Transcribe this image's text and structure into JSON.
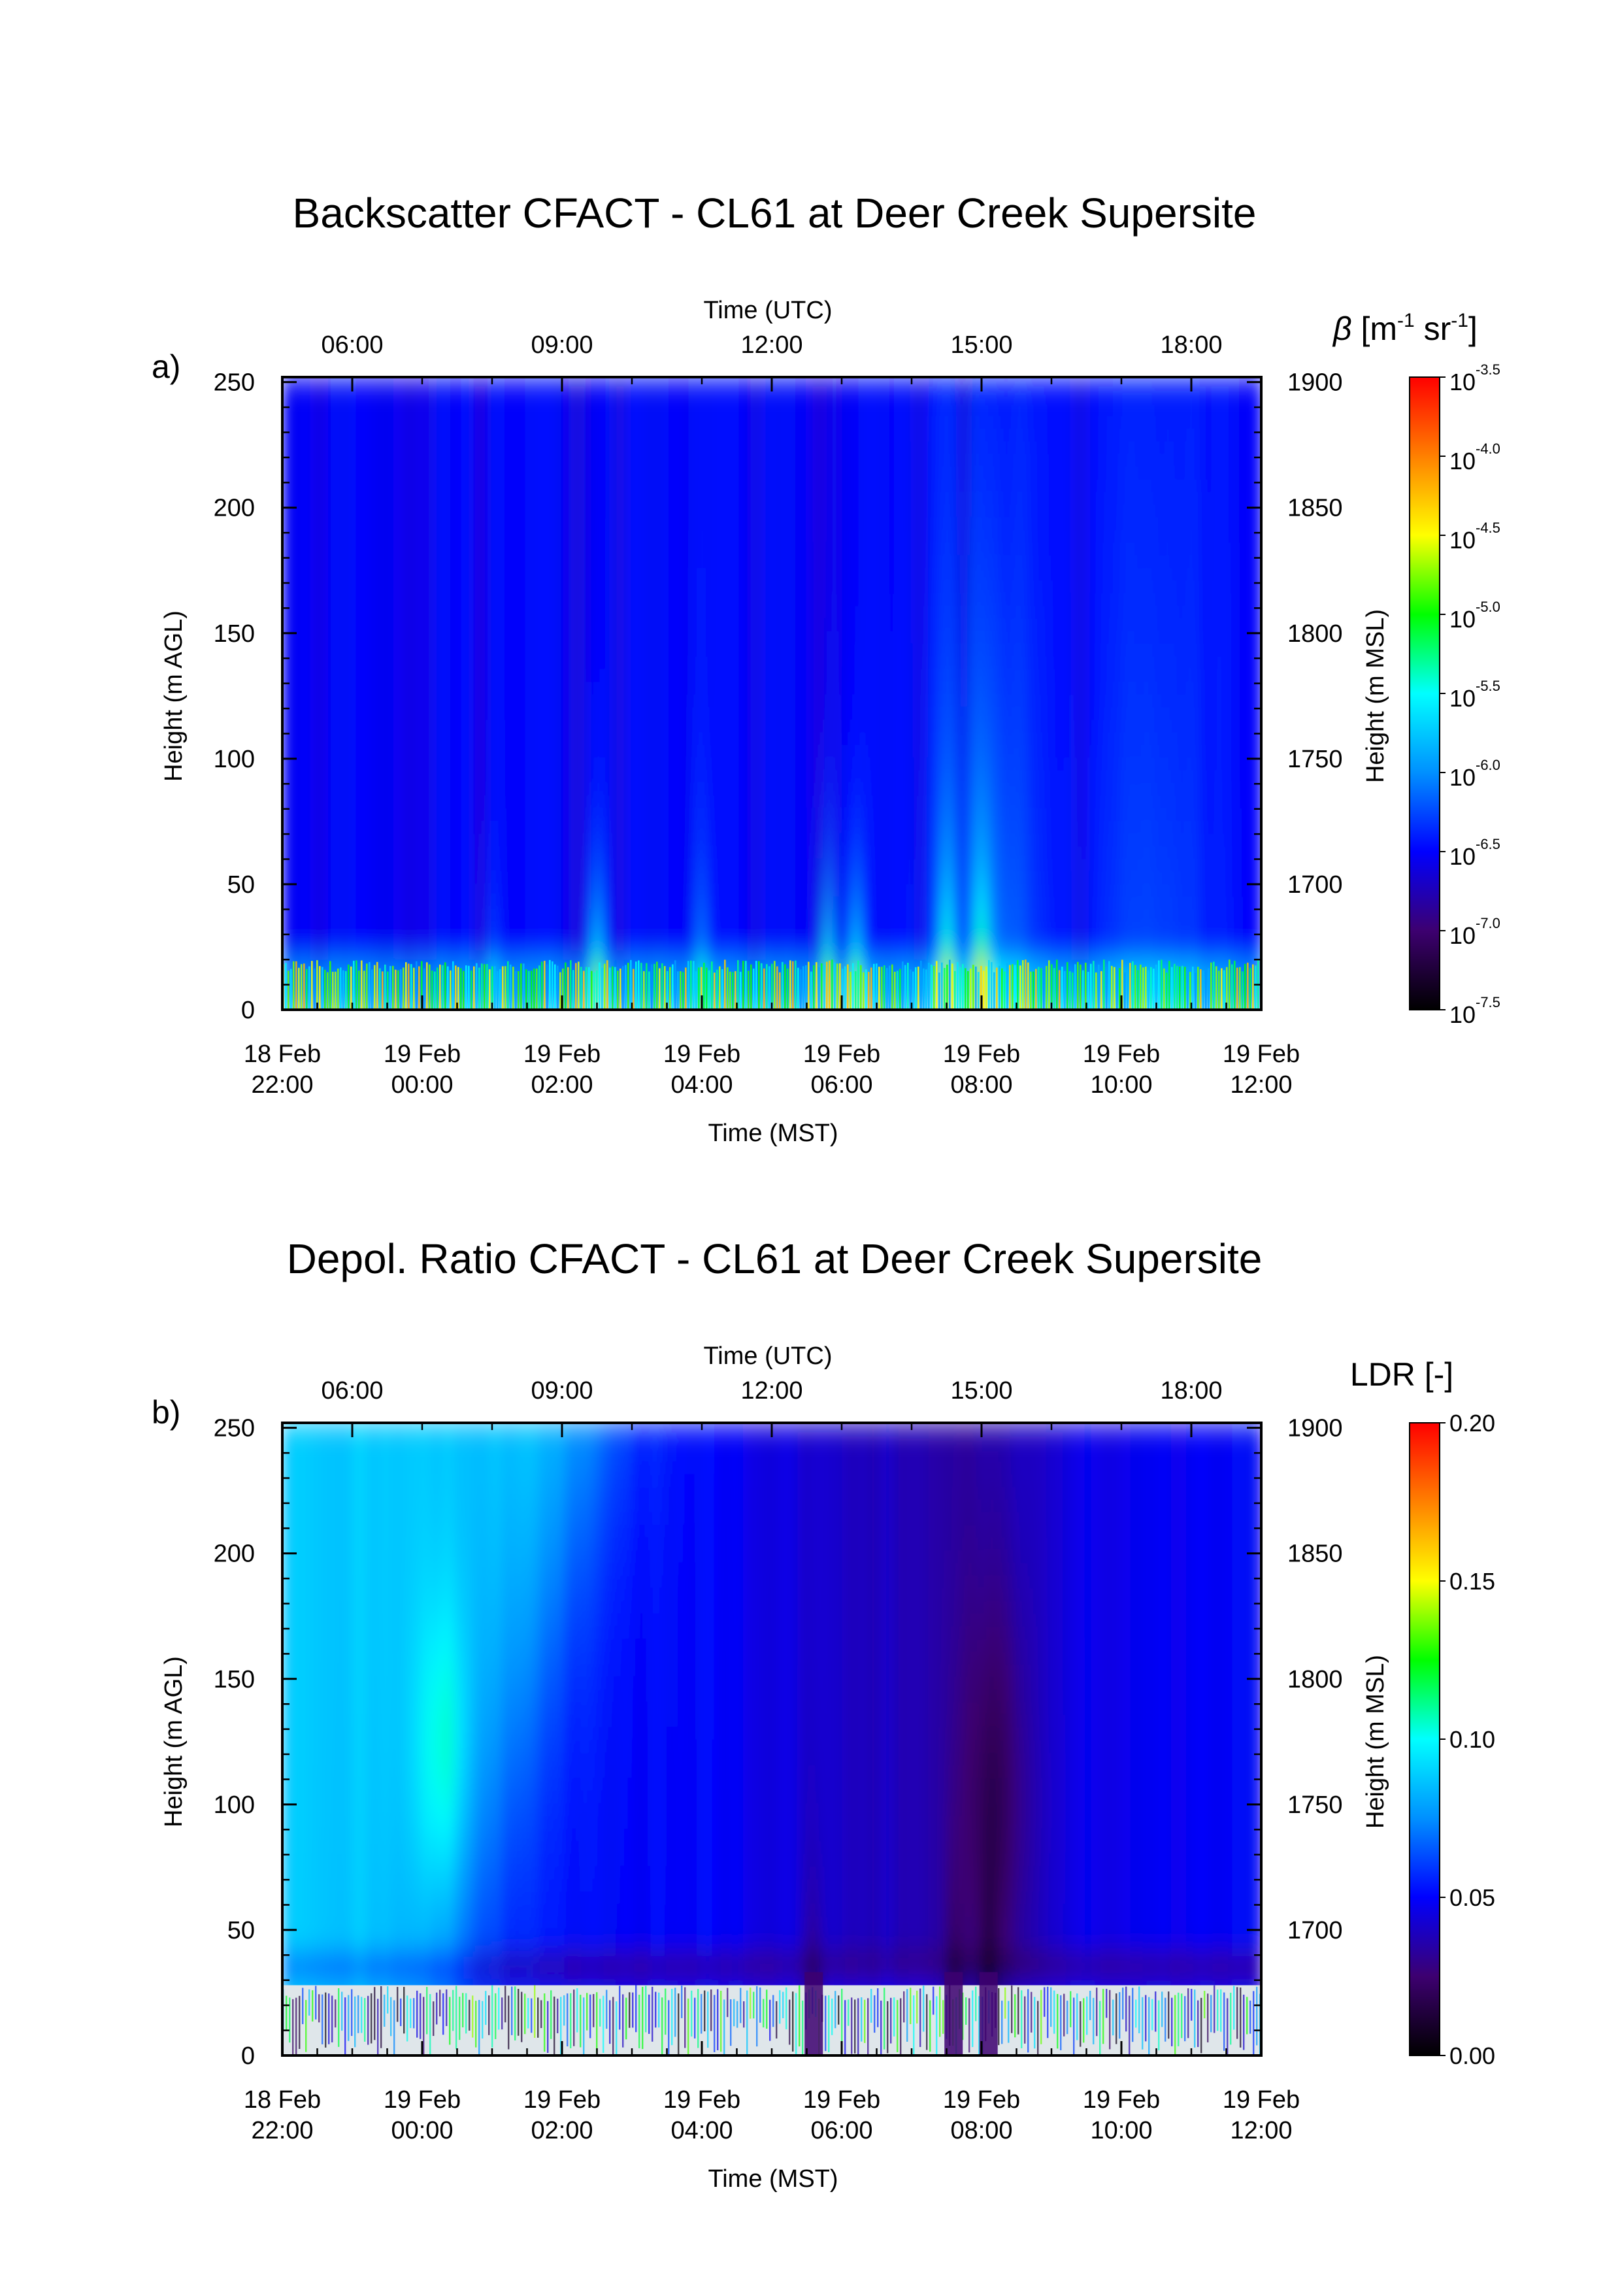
{
  "chart_data": [
    {
      "panel": "a)",
      "title": "Backscatter CFACT - CL61 at Deer Creek Supersite",
      "type": "heatmap",
      "top_axis": {
        "label": "Time (UTC)",
        "ticks": [
          "06:00",
          "09:00",
          "12:00",
          "15:00",
          "18:00"
        ]
      },
      "bottom_axis": {
        "label": "Time (MST)",
        "ticks": [
          [
            "18 Feb",
            "22:00"
          ],
          [
            "19 Feb",
            "00:00"
          ],
          [
            "19 Feb",
            "02:00"
          ],
          [
            "19 Feb",
            "04:00"
          ],
          [
            "19 Feb",
            "06:00"
          ],
          [
            "19 Feb",
            "08:00"
          ],
          [
            "19 Feb",
            "10:00"
          ],
          [
            "19 Feb",
            "12:00"
          ]
        ]
      },
      "xlim_mst_hours": [
        -2,
        12
      ],
      "left_axis": {
        "label": "Height (m AGL)",
        "ticks": [
          0,
          50,
          100,
          150,
          200,
          250
        ],
        "range": [
          0,
          252
        ]
      },
      "right_axis": {
        "label": "Height (m MSL)",
        "ticks": [
          1700,
          1750,
          1800,
          1850,
          1900
        ]
      },
      "colorbar": {
        "label": "β [m-1 sr-1]",
        "ticks": [
          "-3.5",
          "-4.0",
          "-4.5",
          "-5.0",
          "-5.5",
          "-6.0",
          "-6.5",
          "-7.0",
          "-7.5"
        ],
        "tick_base": "10",
        "range_log10": [
          -7.5,
          -3.5
        ],
        "colormap": "rainbow"
      },
      "field_description": {
        "background_log10": -6.5,
        "near_surface_layer_top_m": 20,
        "strong_plumes_mst_hours": [
          2.5,
          5.8,
          6.2,
          7.5,
          8.0
        ],
        "elevated_aerosol_mst_hours": [
          7.5,
          9.5
        ]
      }
    },
    {
      "panel": "b)",
      "title": "Depol. Ratio CFACT - CL61 at Deer Creek Supersite",
      "type": "heatmap",
      "top_axis": {
        "label": "Time (UTC)",
        "ticks": [
          "06:00",
          "09:00",
          "12:00",
          "15:00",
          "18:00"
        ]
      },
      "bottom_axis": {
        "label": "Time (MST)",
        "ticks": [
          [
            "18 Feb",
            "22:00"
          ],
          [
            "19 Feb",
            "00:00"
          ],
          [
            "19 Feb",
            "02:00"
          ],
          [
            "19 Feb",
            "04:00"
          ],
          [
            "19 Feb",
            "06:00"
          ],
          [
            "19 Feb",
            "08:00"
          ],
          [
            "19 Feb",
            "10:00"
          ],
          [
            "19 Feb",
            "12:00"
          ]
        ]
      },
      "xlim_mst_hours": [
        -2,
        12
      ],
      "left_axis": {
        "label": "Height (m AGL)",
        "ticks": [
          0,
          50,
          100,
          150,
          200,
          250
        ],
        "range": [
          0,
          252
        ]
      },
      "right_axis": {
        "label": "Height (m MSL)",
        "ticks": [
          1700,
          1750,
          1800,
          1850,
          1900
        ]
      },
      "colorbar": {
        "label": "LDR [-]",
        "ticks": [
          "0.20",
          "0.15",
          "0.10",
          "0.05",
          "0.00"
        ],
        "range": [
          0.0,
          0.2
        ],
        "colormap": "rainbow"
      },
      "field_description": {
        "early_high_ldr_mst_hours": [
          -2,
          1
        ],
        "high_ldr_value": 0.09,
        "background_ldr": 0.05,
        "low_ldr_plume_mst_hours": [
          5.6,
          7.6,
          8.1
        ],
        "noisy_layer_top_m": 28
      }
    }
  ],
  "colors": {
    "rainbow_stops": [
      "#000000",
      "#3d0070",
      "#0000ff",
      "#0090ff",
      "#00ffff",
      "#00ff00",
      "#ffff00",
      "#ff8000",
      "#ff0000"
    ]
  }
}
